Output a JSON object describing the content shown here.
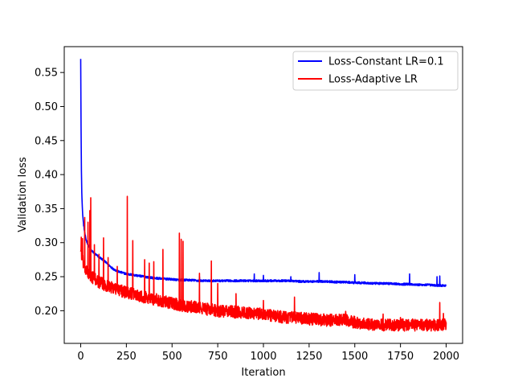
{
  "chart_data": {
    "type": "line",
    "title": "",
    "xlabel": "Iteration",
    "ylabel": "Validation loss",
    "xlim": [
      -90,
      2090
    ],
    "ylim": [
      0.152,
      0.588
    ],
    "xticks": [
      0,
      250,
      500,
      750,
      1000,
      1250,
      1500,
      1750,
      2000
    ],
    "yticks": [
      0.2,
      0.25,
      0.3,
      0.35,
      0.4,
      0.45,
      0.5,
      0.55
    ],
    "xtick_labels": [
      "0",
      "250",
      "500",
      "750",
      "1000",
      "1250",
      "1500",
      "1750",
      "2000"
    ],
    "ytick_labels": [
      "0.20",
      "0.25",
      "0.30",
      "0.35",
      "0.40",
      "0.45",
      "0.50",
      "0.55"
    ],
    "grid": false,
    "legend": "top-right",
    "series": [
      {
        "name": "Loss-Constant LR=0.1",
        "color": "#0000ff",
        "x": [
          0,
          2,
          4,
          6,
          8,
          10,
          15,
          20,
          25,
          30,
          40,
          50,
          60,
          80,
          100,
          125,
          150,
          175,
          200,
          250,
          300,
          350,
          400,
          450,
          500,
          550,
          600,
          650,
          700,
          750,
          800,
          850,
          900,
          950,
          1000,
          1050,
          1100,
          1150,
          1200,
          1250,
          1300,
          1350,
          1400,
          1450,
          1500,
          1550,
          1600,
          1650,
          1700,
          1750,
          1800,
          1850,
          1900,
          1950,
          2000
        ],
        "y": [
          0.57,
          0.47,
          0.405,
          0.375,
          0.358,
          0.345,
          0.328,
          0.318,
          0.31,
          0.304,
          0.297,
          0.292,
          0.288,
          0.283,
          0.279,
          0.274,
          0.268,
          0.262,
          0.258,
          0.254,
          0.252,
          0.25,
          0.248,
          0.247,
          0.246,
          0.245,
          0.245,
          0.244,
          0.244,
          0.244,
          0.244,
          0.244,
          0.244,
          0.244,
          0.244,
          0.244,
          0.244,
          0.244,
          0.243,
          0.243,
          0.243,
          0.243,
          0.242,
          0.242,
          0.241,
          0.241,
          0.24,
          0.24,
          0.24,
          0.239,
          0.239,
          0.238,
          0.238,
          0.237,
          0.237
        ],
        "noise": 0.003,
        "spikes": [
          [
            950,
            0.254
          ],
          [
            1305,
            0.256
          ],
          [
            1500,
            0.253
          ],
          [
            1800,
            0.254
          ],
          [
            1950,
            0.25
          ],
          [
            1965,
            0.251
          ],
          [
            650,
            0.25
          ],
          [
            1000,
            0.252
          ],
          [
            1150,
            0.25
          ]
        ]
      },
      {
        "name": "Loss-Adaptive LR",
        "color": "#ff0000",
        "x": [
          0,
          10,
          20,
          30,
          50,
          75,
          100,
          150,
          200,
          250,
          300,
          350,
          400,
          450,
          500,
          550,
          600,
          650,
          700,
          750,
          800,
          850,
          900,
          950,
          1000,
          1050,
          1100,
          1150,
          1200,
          1250,
          1300,
          1350,
          1400,
          1450,
          1500,
          1550,
          1600,
          1650,
          1700,
          1750,
          1800,
          1850,
          1900,
          1950,
          2000
        ],
        "y": [
          0.29,
          0.275,
          0.263,
          0.258,
          0.252,
          0.247,
          0.242,
          0.236,
          0.231,
          0.227,
          0.224,
          0.22,
          0.217,
          0.214,
          0.211,
          0.208,
          0.206,
          0.204,
          0.202,
          0.2,
          0.199,
          0.198,
          0.197,
          0.196,
          0.195,
          0.193,
          0.191,
          0.19,
          0.189,
          0.188,
          0.187,
          0.186,
          0.186,
          0.186,
          0.183,
          0.181,
          0.179,
          0.179,
          0.179,
          0.179,
          0.179,
          0.179,
          0.179,
          0.179,
          0.18
        ],
        "noise": 0.009,
        "spikes": [
          [
            3,
            0.308
          ],
          [
            10,
            0.306
          ],
          [
            22,
            0.337
          ],
          [
            40,
            0.33
          ],
          [
            50,
            0.347
          ],
          [
            55,
            0.366
          ],
          [
            75,
            0.297
          ],
          [
            100,
            0.283
          ],
          [
            125,
            0.307
          ],
          [
            150,
            0.278
          ],
          [
            200,
            0.265
          ],
          [
            255,
            0.368
          ],
          [
            285,
            0.303
          ],
          [
            350,
            0.275
          ],
          [
            375,
            0.27
          ],
          [
            400,
            0.272
          ],
          [
            450,
            0.29
          ],
          [
            540,
            0.314
          ],
          [
            550,
            0.305
          ],
          [
            560,
            0.302
          ],
          [
            650,
            0.255
          ],
          [
            715,
            0.273
          ],
          [
            750,
            0.24
          ],
          [
            850,
            0.225
          ],
          [
            1000,
            0.215
          ],
          [
            1170,
            0.22
          ],
          [
            1450,
            0.199
          ],
          [
            1655,
            0.195
          ],
          [
            1750,
            0.19
          ],
          [
            1965,
            0.212
          ],
          [
            1985,
            0.196
          ]
        ]
      }
    ]
  }
}
